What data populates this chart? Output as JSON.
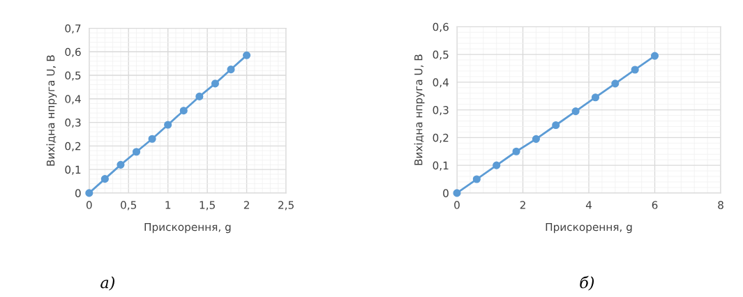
{
  "chart_data": [
    {
      "type": "line",
      "xlabel": "Прискорення, g",
      "ylabel": "Вихідна нпруга U, В",
      "annotations": [
        "а)"
      ],
      "x": [
        0,
        0.2,
        0.4,
        0.6,
        0.8,
        1.0,
        1.2,
        1.4,
        1.6,
        1.8,
        2.0
      ],
      "series": [
        {
          "color": "#5b9bd5",
          "values": [
            0,
            0.06,
            0.12,
            0.175,
            0.23,
            0.29,
            0.35,
            0.41,
            0.465,
            0.525,
            0.585
          ]
        }
      ],
      "xlim": [
        0,
        2.5
      ],
      "ylim": [
        0,
        0.7
      ],
      "xticks": [
        0,
        {
          "value": 0.5,
          "label": "0,5"
        },
        1,
        {
          "value": 1.5,
          "label": "1,5"
        },
        2,
        {
          "value": 2.5,
          "label": "2,5"
        }
      ],
      "yticks": [
        0,
        {
          "value": 0.1,
          "label": "0,1"
        },
        {
          "value": 0.2,
          "label": "0,2"
        },
        {
          "value": 0.3,
          "label": "0,3"
        },
        {
          "value": 0.4,
          "label": "0,4"
        },
        {
          "value": 0.5,
          "label": "0,5"
        },
        {
          "value": 0.6,
          "label": "0,6"
        },
        {
          "value": 0.7,
          "label": "0,7"
        }
      ],
      "grid": true,
      "marker": "circle",
      "line_style": "solid"
    },
    {
      "type": "line",
      "xlabel": "Прискорення, g",
      "ylabel": "Вихідна нпруга U, В",
      "annotations": [
        "б)"
      ],
      "x": [
        0,
        0.6,
        1.2,
        1.8,
        2.4,
        3.0,
        3.6,
        4.2,
        4.8,
        5.4,
        6.0
      ],
      "series": [
        {
          "color": "#5b9bd5",
          "values": [
            0,
            0.05,
            0.1,
            0.15,
            0.195,
            0.245,
            0.295,
            0.345,
            0.395,
            0.445,
            0.495
          ]
        }
      ],
      "xlim": [
        0,
        8
      ],
      "ylim": [
        0,
        0.6
      ],
      "xticks": [
        0,
        2,
        4,
        6,
        8
      ],
      "yticks": [
        0,
        {
          "value": 0.1,
          "label": "0,1"
        },
        {
          "value": 0.2,
          "label": "0,2"
        },
        {
          "value": 0.3,
          "label": "0,3"
        },
        {
          "value": 0.4,
          "label": "0,4"
        },
        {
          "value": 0.5,
          "label": "0,5"
        },
        {
          "value": 0.6,
          "label": "0,6"
        }
      ],
      "grid": true,
      "marker": "circle",
      "line_style": "solid"
    }
  ]
}
